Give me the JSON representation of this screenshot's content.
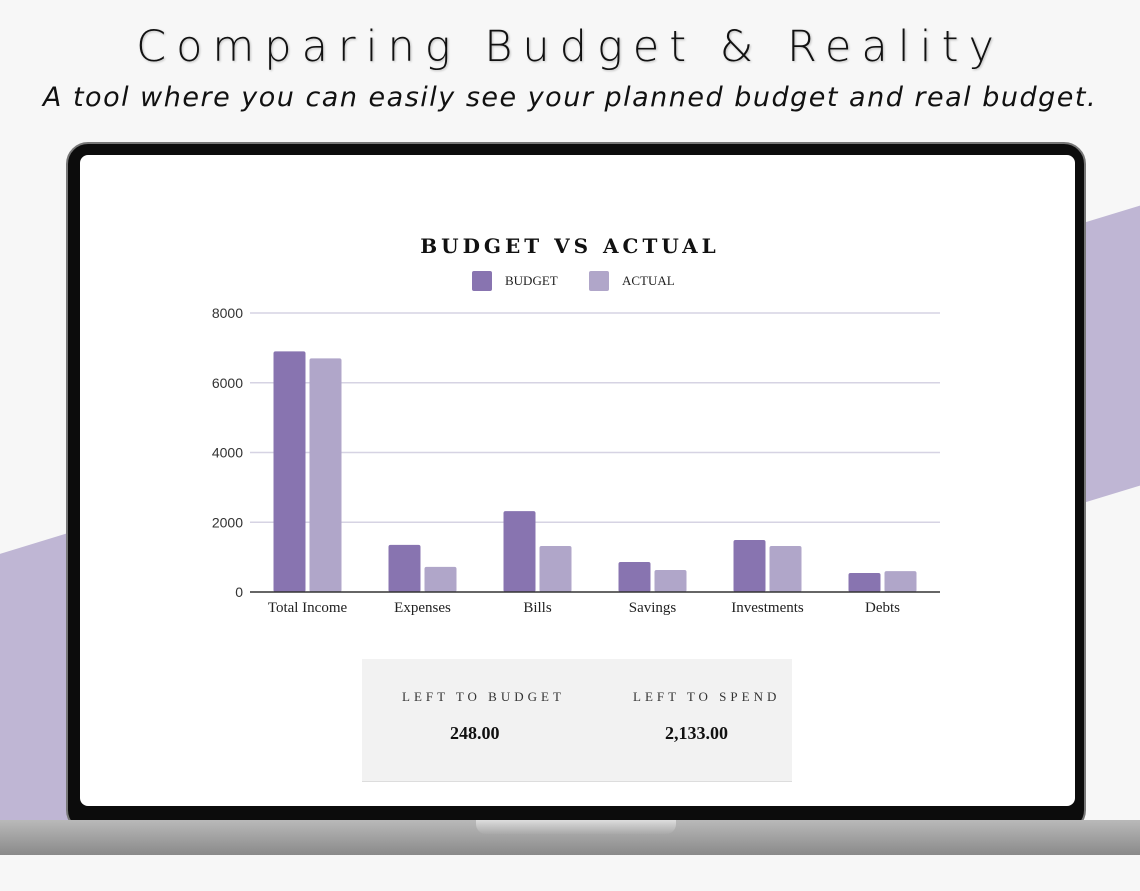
{
  "header": {
    "title": "Comparing Budget & Reality",
    "subtitle": "A tool where you can easily see your planned budget and real budget."
  },
  "chart_data": {
    "type": "bar",
    "title": "BUDGET VS ACTUAL",
    "categories": [
      "Total Income",
      "Expenses",
      "Bills",
      "Savings",
      "Investments",
      "Debts"
    ],
    "series": [
      {
        "name": "BUDGET",
        "color": "#8874b0",
        "values": [
          6900,
          1350,
          2320,
          860,
          1490,
          545
        ]
      },
      {
        "name": "ACTUAL",
        "color": "#b0a6c9",
        "values": [
          6700,
          720,
          1320,
          630,
          1320,
          600
        ]
      }
    ],
    "yticks": [
      "0",
      "2000",
      "4000",
      "6000",
      "8000"
    ],
    "ylim": [
      0,
      8000
    ],
    "grid": true,
    "legend": "top-center",
    "xlabel": "",
    "ylabel": ""
  },
  "summary": {
    "left_to_budget": {
      "label": "LEFT TO BUDGET",
      "value": "248.00"
    },
    "left_to_spend": {
      "label": "LEFT TO SPEND",
      "value": "2,133.00"
    }
  }
}
